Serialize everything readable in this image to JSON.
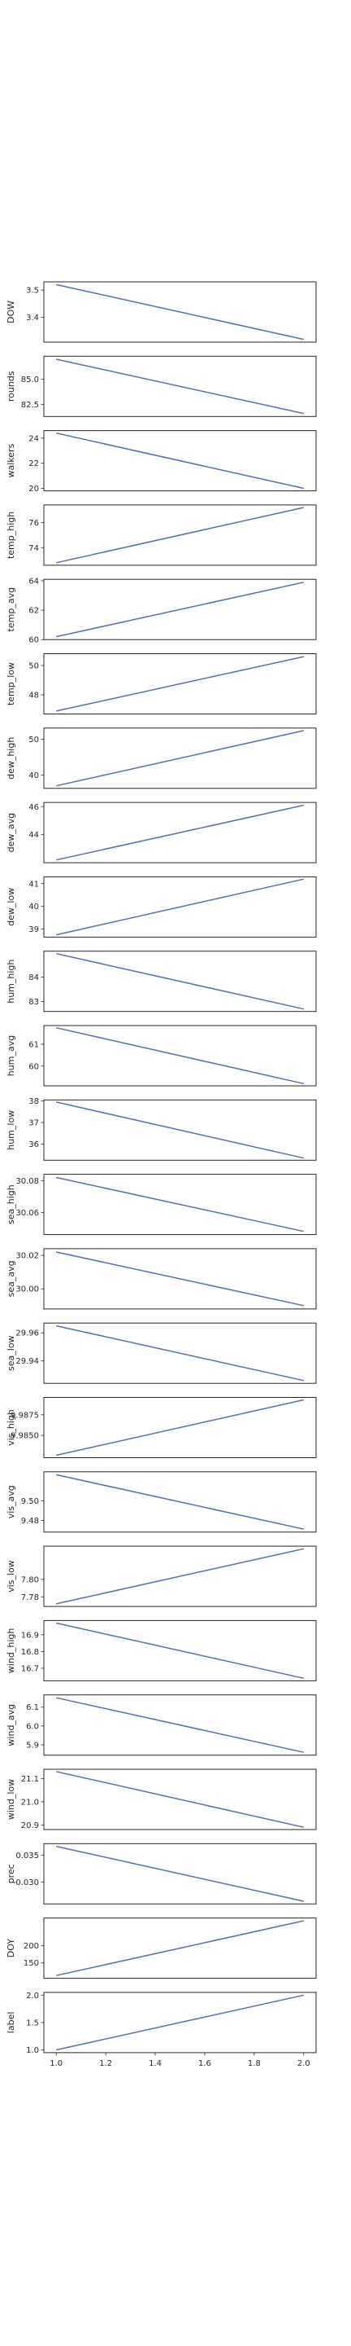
{
  "line_color": "#4c72b0",
  "chart_data": [
    {
      "type": "line",
      "ylabel": "DOW",
      "x": [
        1.0,
        2.0
      ],
      "y": [
        3.52,
        3.32
      ],
      "ylim": [
        3.31,
        3.53
      ],
      "ytick_values": [
        3.4,
        3.5
      ],
      "yticks": [
        "3.4",
        "3.5"
      ],
      "xticks": []
    },
    {
      "type": "line",
      "ylabel": "rounds",
      "x": [
        1.0,
        2.0
      ],
      "y": [
        87.0,
        81.6
      ],
      "ylim": [
        81.3,
        87.3
      ],
      "ytick_values": [
        82.5,
        85.0
      ],
      "yticks": [
        "82.5",
        "85.0"
      ],
      "xticks": []
    },
    {
      "type": "line",
      "ylabel": "walkers",
      "x": [
        1.0,
        2.0
      ],
      "y": [
        24.4,
        20.0
      ],
      "ylim": [
        19.8,
        24.6
      ],
      "ytick_values": [
        20,
        22,
        24
      ],
      "yticks": [
        "20",
        "22",
        "24"
      ],
      "xticks": []
    },
    {
      "type": "line",
      "ylabel": "temp_high",
      "x": [
        1.0,
        2.0
      ],
      "y": [
        72.8,
        77.2
      ],
      "ylim": [
        72.6,
        77.4
      ],
      "ytick_values": [
        74,
        76
      ],
      "yticks": [
        "74",
        "76"
      ],
      "xticks": []
    },
    {
      "type": "line",
      "ylabel": "temp_avg",
      "x": [
        1.0,
        2.0
      ],
      "y": [
        60.2,
        63.9
      ],
      "ylim": [
        60.0,
        64.1
      ],
      "ytick_values": [
        60,
        62,
        64
      ],
      "yticks": [
        "60",
        "62",
        "64"
      ],
      "xticks": []
    },
    {
      "type": "line",
      "ylabel": "temp_low",
      "x": [
        1.0,
        2.0
      ],
      "y": [
        46.9,
        50.6
      ],
      "ylim": [
        46.7,
        50.8
      ],
      "ytick_values": [
        48,
        50
      ],
      "yticks": [
        "48",
        "50"
      ],
      "xticks": []
    },
    {
      "type": "line",
      "ylabel": "dew_high",
      "x": [
        1.0,
        2.0
      ],
      "y": [
        37.0,
        52.4
      ],
      "ylim": [
        36.3,
        53.1
      ],
      "ytick_values": [
        40,
        50
      ],
      "yticks": [
        "40",
        "50"
      ],
      "xticks": []
    },
    {
      "type": "line",
      "ylabel": "dew_avg",
      "x": [
        1.0,
        2.0
      ],
      "y": [
        42.2,
        46.1
      ],
      "ylim": [
        42.0,
        46.3
      ],
      "ytick_values": [
        44,
        46
      ],
      "yticks": [
        "44",
        "46"
      ],
      "xticks": []
    },
    {
      "type": "line",
      "ylabel": "dew_low",
      "x": [
        1.0,
        2.0
      ],
      "y": [
        38.75,
        41.2
      ],
      "ylim": [
        38.65,
        41.3
      ],
      "ytick_values": [
        39,
        40,
        41
      ],
      "yticks": [
        "39",
        "40",
        "41"
      ],
      "xticks": []
    },
    {
      "type": "line",
      "ylabel": "hum_high",
      "x": [
        1.0,
        2.0
      ],
      "y": [
        84.95,
        82.7
      ],
      "ylim": [
        82.6,
        85.05
      ],
      "ytick_values": [
        83,
        84
      ],
      "yticks": [
        "83",
        "84"
      ],
      "xticks": []
    },
    {
      "type": "line",
      "ylabel": "hum_avg",
      "x": [
        1.0,
        2.0
      ],
      "y": [
        61.75,
        59.2
      ],
      "ylim": [
        59.1,
        61.85
      ],
      "ytick_values": [
        60,
        61
      ],
      "yticks": [
        "60",
        "61"
      ],
      "xticks": []
    },
    {
      "type": "line",
      "ylabel": "hum_low",
      "x": [
        1.0,
        2.0
      ],
      "y": [
        37.95,
        35.35
      ],
      "ylim": [
        35.25,
        38.05
      ],
      "ytick_values": [
        36,
        37,
        38
      ],
      "yticks": [
        "36",
        "37",
        "38"
      ],
      "xticks": []
    },
    {
      "type": "line",
      "ylabel": "sea_high",
      "x": [
        1.0,
        2.0
      ],
      "y": [
        30.082,
        30.048
      ],
      "ylim": [
        30.046,
        30.084
      ],
      "ytick_values": [
        30.06,
        30.08
      ],
      "yticks": [
        "30.06",
        "30.08"
      ],
      "xticks": []
    },
    {
      "type": "line",
      "ylabel": "sea_avg",
      "x": [
        1.0,
        2.0
      ],
      "y": [
        30.022,
        29.99
      ],
      "ylim": [
        29.988,
        30.024
      ],
      "ytick_values": [
        30.0,
        30.02
      ],
      "yticks": [
        "30.00",
        "30.02"
      ],
      "xticks": []
    },
    {
      "type": "line",
      "ylabel": "sea_low",
      "x": [
        1.0,
        2.0
      ],
      "y": [
        29.965,
        29.926
      ],
      "ylim": [
        29.924,
        29.967
      ],
      "ytick_values": [
        29.94,
        29.96
      ],
      "yticks": [
        "29.94",
        "29.96"
      ],
      "xticks": []
    },
    {
      "type": "line",
      "ylabel": "vis_high",
      "x": [
        1.0,
        2.0
      ],
      "y": [
        9.9826,
        9.9893
      ],
      "ylim": [
        9.9823,
        9.9896
      ],
      "ytick_values": [
        9.985,
        9.9875
      ],
      "yticks": [
        "9.9850",
        "9.9875"
      ],
      "xticks": []
    },
    {
      "type": "line",
      "ylabel": "vis_avg",
      "x": [
        1.0,
        2.0
      ],
      "y": [
        9.527,
        9.471
      ],
      "ylim": [
        9.468,
        9.53
      ],
      "ytick_values": [
        9.48,
        9.5
      ],
      "yticks": [
        "9.48",
        "9.50"
      ],
      "xticks": []
    },
    {
      "type": "line",
      "ylabel": "vis_low",
      "x": [
        1.0,
        2.0
      ],
      "y": [
        7.772,
        7.835
      ],
      "ylim": [
        7.769,
        7.838
      ],
      "ytick_values": [
        7.78,
        7.8
      ],
      "yticks": [
        "7.78",
        "7.80"
      ],
      "xticks": []
    },
    {
      "type": "line",
      "ylabel": "wind_high",
      "x": [
        1.0,
        2.0
      ],
      "y": [
        16.97,
        16.64
      ],
      "ylim": [
        16.625,
        16.985
      ],
      "ytick_values": [
        16.7,
        16.8,
        16.9
      ],
      "yticks": [
        "16.7",
        "16.8",
        "16.9"
      ],
      "xticks": []
    },
    {
      "type": "line",
      "ylabel": "wind_avg",
      "x": [
        1.0,
        2.0
      ],
      "y": [
        6.15,
        5.86
      ],
      "ylim": [
        5.845,
        6.165
      ],
      "ytick_values": [
        5.9,
        6.0,
        6.1
      ],
      "yticks": [
        "5.9",
        "6.0",
        "6.1"
      ],
      "xticks": []
    },
    {
      "type": "line",
      "ylabel": "wind_low",
      "x": [
        1.0,
        2.0
      ],
      "y": [
        21.13,
        20.89
      ],
      "ylim": [
        20.88,
        21.14
      ],
      "ytick_values": [
        20.9,
        21.0,
        21.1
      ],
      "yticks": [
        "20.9",
        "21.0",
        "21.1"
      ],
      "xticks": []
    },
    {
      "type": "line",
      "ylabel": "prec",
      "x": [
        1.0,
        2.0
      ],
      "y": [
        0.0366,
        0.0265
      ],
      "ylim": [
        0.026,
        0.0371
      ],
      "ytick_values": [
        0.03,
        0.035
      ],
      "yticks": [
        "0.030",
        "0.035"
      ],
      "xticks": []
    },
    {
      "type": "line",
      "ylabel": "DOY",
      "x": [
        1.0,
        2.0
      ],
      "y": [
        113,
        273
      ],
      "ylim": [
        105,
        281
      ],
      "ytick_values": [
        150,
        200
      ],
      "yticks": [
        "150",
        "200"
      ],
      "xticks": []
    },
    {
      "type": "line",
      "ylabel": "label",
      "x": [
        1.0,
        2.0
      ],
      "y": [
        1.0,
        2.0
      ],
      "ylim": [
        0.95,
        2.05
      ],
      "ytick_values": [
        1.0,
        1.5,
        2.0
      ],
      "yticks": [
        "1.0",
        "1.5",
        "2.0"
      ],
      "xlim": [
        0.95,
        2.05
      ],
      "xtick_values": [
        1.0,
        1.2,
        1.4,
        1.6,
        1.8,
        2.0
      ],
      "xticks": [
        "1.0",
        "1.2",
        "1.4",
        "1.6",
        "1.8",
        "2.0"
      ]
    }
  ]
}
